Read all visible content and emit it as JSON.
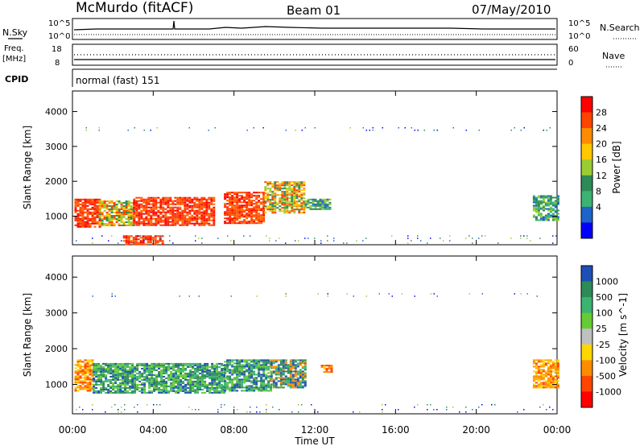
{
  "header": {
    "station": "McMurdo (fitACF)",
    "beam": "Beam 01",
    "date": "07/May/2010"
  },
  "panels": {
    "nsky": {
      "label": "N.Sky",
      "right_label": "N.Search",
      "ticks_left": [
        "10^5",
        "10^0"
      ],
      "ticks_right": [
        "10^5",
        "10^0"
      ]
    },
    "freq": {
      "label_line1": "Freq.",
      "label_line2": "[MHz]",
      "right_label": "Nave",
      "ticks_left": [
        "18",
        "8"
      ],
      "ticks_right": [
        "60",
        "0"
      ]
    },
    "cpid": {
      "label": "CPID",
      "value": "normal (fast) 151"
    }
  },
  "chart_data": [
    {
      "type": "heatmap",
      "title": "",
      "xlabel": "",
      "ylabel": "Slant Range [km]",
      "x_ticks": [
        "00:00",
        "04:00",
        "08:00",
        "12:00",
        "16:00",
        "20:00",
        "00:00"
      ],
      "xlim_hours": [
        0,
        24
      ],
      "y_ticks": [
        1000,
        2000,
        3000,
        4000
      ],
      "ylim_km": [
        180,
        4590
      ],
      "colorbar": {
        "label": "Power [dB]",
        "ticks": [
          "28",
          "24",
          "20",
          "16",
          "12",
          "8",
          "4"
        ],
        "colors": [
          "#ff0000",
          "#ff4400",
          "#ff8c00",
          "#ffc800",
          "#9acd32",
          "#2e8b57",
          "#3cb371",
          "#1e64c8",
          "#0000ff"
        ]
      },
      "regions": [
        {
          "t0": 0.1,
          "t1": 1.3,
          "r0": 700,
          "r1": 1500,
          "level": "high"
        },
        {
          "t0": 1.3,
          "t1": 3.0,
          "r0": 750,
          "r1": 1450,
          "level": "medium"
        },
        {
          "t0": 3.0,
          "t1": 7.0,
          "r0": 750,
          "r1": 1550,
          "level": "high"
        },
        {
          "t0": 7.5,
          "t1": 9.5,
          "r0": 800,
          "r1": 1700,
          "level": "high"
        },
        {
          "t0": 9.5,
          "t1": 11.5,
          "r0": 1100,
          "r1": 2000,
          "level": "medium"
        },
        {
          "t0": 11.5,
          "t1": 12.8,
          "r0": 1200,
          "r1": 1500,
          "level": "low"
        },
        {
          "t0": 2.5,
          "t1": 4.5,
          "r0": 200,
          "r1": 450,
          "level": "high"
        },
        {
          "t0": 22.8,
          "t1": 24.0,
          "r0": 900,
          "r1": 1600,
          "level": "low"
        },
        {
          "t0": 0.0,
          "t1": 24.0,
          "r0": 200,
          "r1": 450,
          "level": "noise"
        },
        {
          "t0": 0.5,
          "t1": 24.0,
          "r0": 3450,
          "r1": 3550,
          "level": "noise"
        }
      ]
    },
    {
      "type": "heatmap",
      "title": "",
      "xlabel": "Time UT",
      "ylabel": "Slant Range [km]",
      "x_ticks": [
        "00:00",
        "04:00",
        "08:00",
        "12:00",
        "16:00",
        "20:00",
        "00:00"
      ],
      "xlim_hours": [
        0,
        24
      ],
      "y_ticks": [
        1000,
        2000,
        3000,
        4000
      ],
      "ylim_km": [
        180,
        4590
      ],
      "colorbar": {
        "label": "Velocity [m s^-1]",
        "ticks": [
          "1000",
          "500",
          "100",
          "25",
          "-25",
          "-100",
          "-500",
          "-1000"
        ],
        "colors": [
          "#1e50b4",
          "#2e8b57",
          "#3cb371",
          "#66cc33",
          "#c0c0c0",
          "#ffd700",
          "#ff8c00",
          "#ff4500",
          "#ff0000"
        ]
      },
      "regions": [
        {
          "t0": 0.1,
          "t1": 1.0,
          "r0": 800,
          "r1": 1700,
          "level": "negative"
        },
        {
          "t0": 1.0,
          "t1": 7.5,
          "r0": 750,
          "r1": 1600,
          "level": "positive"
        },
        {
          "t0": 7.5,
          "t1": 9.8,
          "r0": 800,
          "r1": 1700,
          "level": "positive"
        },
        {
          "t0": 9.8,
          "t1": 11.5,
          "r0": 900,
          "r1": 1700,
          "level": "mixed"
        },
        {
          "t0": 12.3,
          "t1": 12.8,
          "r0": 1350,
          "r1": 1550,
          "level": "negative"
        },
        {
          "t0": 22.8,
          "t1": 24.0,
          "r0": 900,
          "r1": 1700,
          "level": "negative"
        },
        {
          "t0": 0.5,
          "t1": 24.0,
          "r0": 3450,
          "r1": 3550,
          "level": "noise"
        },
        {
          "t0": 0.0,
          "t1": 24.0,
          "r0": 200,
          "r1": 450,
          "level": "noise"
        }
      ]
    }
  ]
}
